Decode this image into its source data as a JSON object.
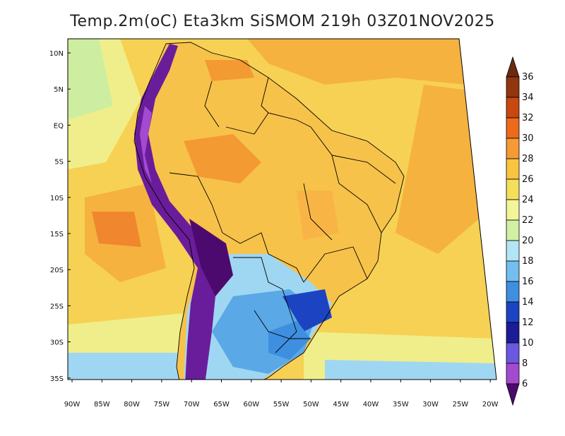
{
  "title": "Temp.2m(oC) Eta3km SiSMOM 219h 03Z01NOV2025",
  "map": {
    "variable": "2m temperature",
    "units": "oC",
    "model": "Eta3km SiSMOM",
    "forecast_hour": "219h",
    "valid_time": "03Z01NOV2025",
    "lat_labels": [
      "10N",
      "5N",
      "EQ",
      "5S",
      "10S",
      "15S",
      "20S",
      "25S",
      "30S",
      "35S"
    ],
    "lon_labels": [
      "90W",
      "85W",
      "80W",
      "75W",
      "70W",
      "65W",
      "60W",
      "55W",
      "50W",
      "45W",
      "40W",
      "35W",
      "30W",
      "25W",
      "20W"
    ],
    "colors": {
      "ocean_warm": "#f5b23e",
      "ocean_mid": "#f6d154",
      "ocean_cool": "#f0ee8a",
      "land_warm": "#f7c24a",
      "land_hot": "#f49a32",
      "south_cool": "#9fd7f2",
      "south_cold": "#5aa8e6",
      "andes": "#6a1d9a",
      "borders": "#000000"
    }
  },
  "colorbar": {
    "labels": [
      "36",
      "34",
      "32",
      "30",
      "28",
      "26",
      "24",
      "22",
      "20",
      "18",
      "16",
      "14",
      "12",
      "10",
      "8",
      "6"
    ],
    "colors": [
      "#6b2a13",
      "#93350f",
      "#c8480f",
      "#ec6a1a",
      "#f59a34",
      "#f8c441",
      "#f5df5a",
      "#f3f59a",
      "#d2f0a4",
      "#b3e6f5",
      "#72bfef",
      "#3f8fe0",
      "#1c44c2",
      "#1b1c96",
      "#6b57e0",
      "#a44ad0",
      "#6a1b9a",
      "#4d0a6e"
    ]
  }
}
